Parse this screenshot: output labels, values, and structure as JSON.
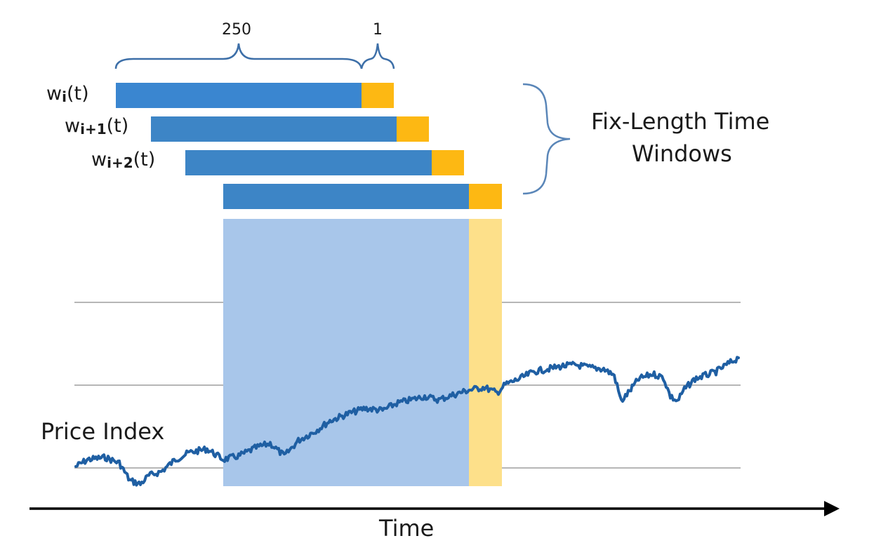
{
  "diagram": {
    "brackets": {
      "train_length": "250",
      "test_length": "1",
      "group_label_line1": "Fix-Length Time",
      "group_label_line2": "Windows"
    },
    "windows": [
      {
        "base": "w",
        "sub": "i",
        "arg": "(t)"
      },
      {
        "base": "w",
        "sub": "i+1",
        "arg": "(t)"
      },
      {
        "base": "w",
        "sub": "i+2",
        "arg": "(t)"
      },
      {
        "base": "",
        "sub": "",
        "arg": ""
      }
    ],
    "series_label": "Price Index",
    "axis_label": "Time",
    "colors": {
      "train": "#3d85c6",
      "test": "#fdb813",
      "train_overlay": "#a8c6ea",
      "test_overlay": "#fde08a",
      "price_line": "#1f5fa3",
      "grid": "#8a8a8a"
    }
  }
}
